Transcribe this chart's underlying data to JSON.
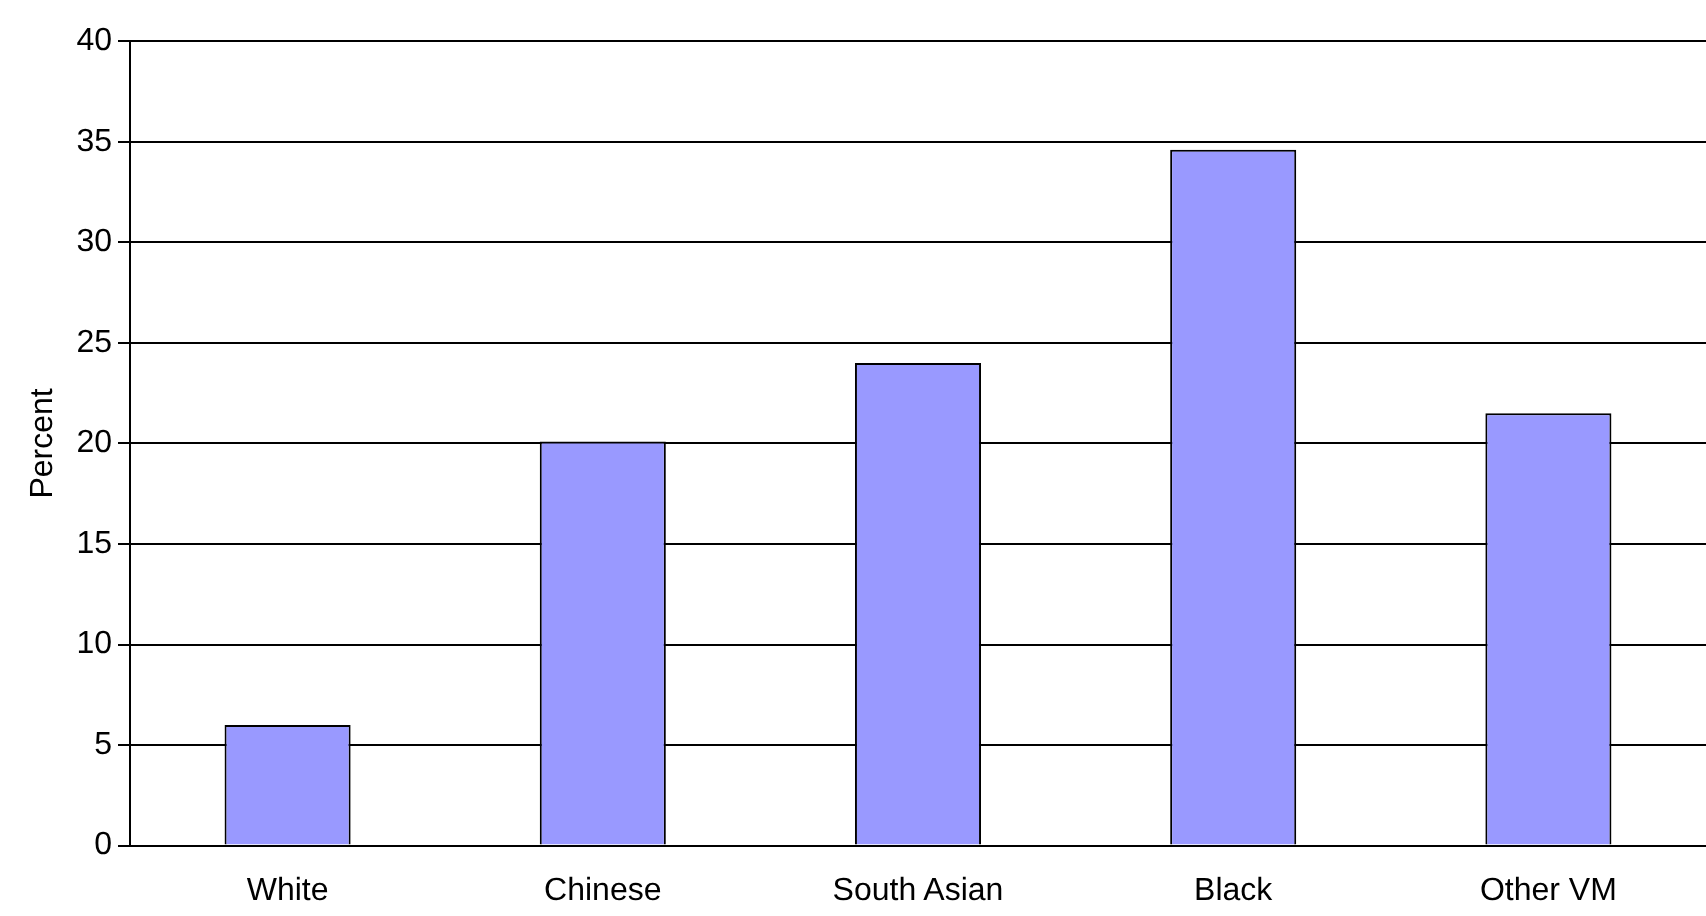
{
  "chart_data": {
    "type": "bar",
    "ylabel": "Percent",
    "categories": [
      "White",
      "Chinese",
      "South Asian",
      "Black",
      "Other VM"
    ],
    "values": [
      6.0,
      20.1,
      24.0,
      34.6,
      21.5
    ],
    "color": "#9999ff",
    "ylim": [
      0,
      40
    ],
    "yticks": [
      0,
      5,
      10,
      15,
      20,
      25,
      30,
      35,
      40
    ],
    "grid": "y",
    "legend": false
  }
}
